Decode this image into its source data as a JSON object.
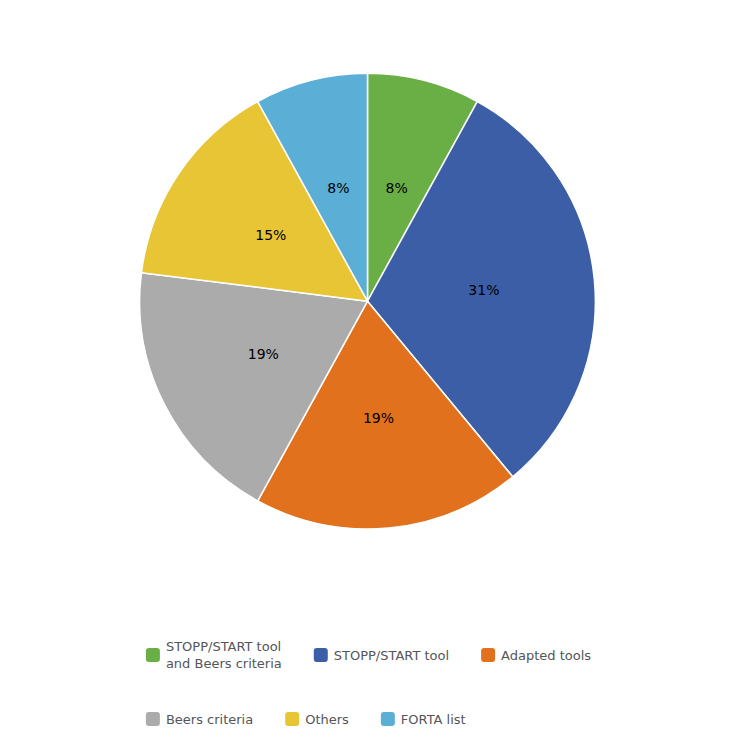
{
  "chart_data": {
    "type": "pie",
    "categories": [
      "STOPP/START tool\nand Beers criteria",
      "STOPP/START tool",
      "Adapted tools",
      "Beers criteria",
      "Others",
      "FORTA list"
    ],
    "values": [
      8,
      31,
      19,
      19,
      15,
      8
    ],
    "value_labels": [
      "8%",
      "31%",
      "19%",
      "19%",
      "15%",
      "8%"
    ],
    "colors": [
      "#6AAF45",
      "#3B5EA6",
      "#E2711D",
      "#ABABAB",
      "#E8C534",
      "#5BAED6"
    ],
    "data_labels": true,
    "legend": "bottom"
  }
}
